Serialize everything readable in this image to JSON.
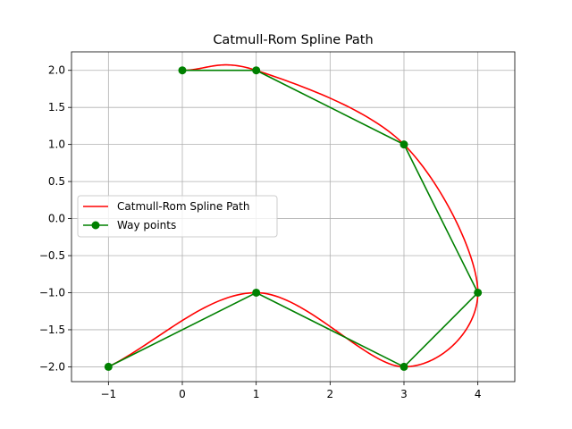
{
  "chart_data": {
    "type": "line",
    "title": "Catmull-Rom Spline Path",
    "xlabel": "",
    "ylabel": "",
    "xlim": [
      -1.5,
      4.5
    ],
    "ylim": [
      -2.2,
      2.25
    ],
    "xticks": [
      -1,
      0,
      1,
      2,
      3,
      4
    ],
    "xtick_labels": [
      "−1",
      "0",
      "1",
      "2",
      "3",
      "4"
    ],
    "yticks": [
      -2.0,
      -1.5,
      -1.0,
      -0.5,
      0.0,
      0.5,
      1.0,
      1.5,
      2.0
    ],
    "ytick_labels": [
      "−2.0",
      "−1.5",
      "−1.0",
      "−0.5",
      "0.0",
      "0.5",
      "1.0",
      "1.5",
      "2.0"
    ],
    "grid": true,
    "legend_position": "center-left",
    "series": [
      {
        "name": "Catmull-Rom Spline Path",
        "color": "#ff0000",
        "marker": "none",
        "x": [
          0.0,
          1.0,
          3.0,
          4.0,
          3.0,
          1.0,
          -1.0
        ],
        "y": [
          2.0,
          2.0,
          1.0,
          -1.0,
          -2.0,
          -1.0,
          -2.0
        ]
      },
      {
        "name": "Way points",
        "color": "#008000",
        "marker": "circle",
        "x": [
          0.0,
          1.0,
          3.0,
          4.0,
          3.0,
          1.0,
          -1.0
        ],
        "y": [
          2.0,
          2.0,
          1.0,
          -1.0,
          -2.0,
          -1.0,
          -2.0
        ]
      }
    ]
  }
}
